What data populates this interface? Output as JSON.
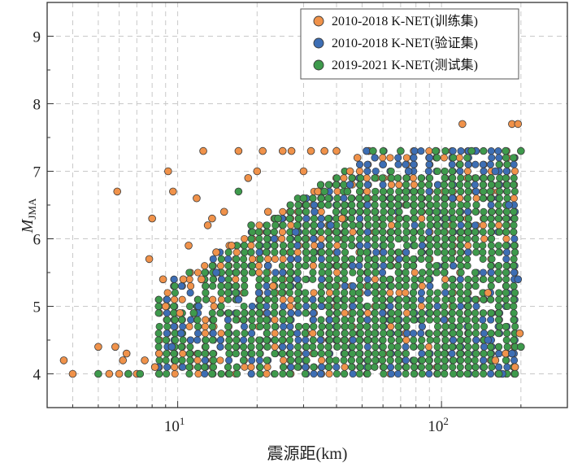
{
  "chart_data": {
    "type": "scatter",
    "xlabel": "震源距(km)",
    "ylabel_main": "M",
    "ylabel_sub": "JMA",
    "x_scale": "log",
    "xlim": [
      3.2,
      300
    ],
    "ylim": [
      3.5,
      9.5
    ],
    "x_major_ticks": [
      {
        "value": 10,
        "base": "10",
        "exp": "1"
      },
      {
        "value": 100,
        "base": "10",
        "exp": "2"
      }
    ],
    "y_ticks": [
      4,
      5,
      6,
      7,
      8,
      9
    ],
    "grid": true,
    "legend_position": "top-right",
    "series": [
      {
        "name": "2010-2018 K-NET(训练集)",
        "color": "#F0924A",
        "points": [
          [
            3.7,
            4.2
          ],
          [
            4.0,
            4.0
          ],
          [
            5.0,
            4.4
          ],
          [
            5.5,
            4.0
          ],
          [
            5.8,
            4.4
          ],
          [
            5.9,
            6.7
          ],
          [
            6.0,
            4.0
          ],
          [
            6.2,
            4.2
          ],
          [
            6.4,
            4.3
          ],
          [
            6.5,
            4.0
          ],
          [
            7.0,
            4.0
          ],
          [
            7.5,
            4.2
          ],
          [
            7.8,
            5.7
          ],
          [
            8.0,
            6.3
          ],
          [
            8.2,
            4.1
          ],
          [
            8.5,
            4.3
          ],
          [
            8.8,
            5.4
          ],
          [
            9.0,
            5.0
          ],
          [
            9.2,
            7.0
          ],
          [
            9.6,
            6.7
          ],
          [
            10.2,
            4.9
          ],
          [
            10.5,
            5.4
          ],
          [
            11.0,
            5.9
          ],
          [
            11.8,
            6.6
          ],
          [
            12.3,
            5.4
          ],
          [
            12.5,
            7.3
          ],
          [
            13.0,
            6.2
          ],
          [
            13.5,
            6.3
          ],
          [
            14.0,
            5.8
          ],
          [
            15.0,
            6.4
          ],
          [
            16.0,
            5.9
          ],
          [
            17.0,
            7.3
          ],
          [
            18.5,
            6.9
          ],
          [
            20.0,
            7.0
          ],
          [
            21.0,
            7.3
          ],
          [
            22.0,
            6.4
          ],
          [
            23.0,
            5.3
          ],
          [
            25.0,
            7.3
          ],
          [
            27.0,
            7.3
          ],
          [
            30.0,
            7.0
          ],
          [
            32.0,
            7.3
          ],
          [
            34.0,
            6.7
          ],
          [
            36.0,
            7.3
          ],
          [
            40.0,
            7.3
          ],
          [
            42.0,
            6.3
          ],
          [
            45.0,
            7.0
          ],
          [
            48.0,
            7.2
          ],
          [
            53.0,
            7.3
          ],
          [
            120.0,
            7.7
          ],
          [
            185.0,
            7.7
          ],
          [
            195.0,
            7.7
          ],
          [
            190.0,
            4.1
          ],
          [
            160.0,
            4.2
          ],
          [
            175.0,
            4.3
          ],
          [
            150.0,
            5.2
          ],
          [
            198.0,
            4.6
          ]
        ]
      },
      {
        "name": "2010-2018 K-NET(验证集)",
        "color": "#3D6EB4",
        "points": [
          [
            9.5,
            4.4
          ],
          [
            10.3,
            4.6
          ],
          [
            12.0,
            5.0
          ],
          [
            14.0,
            5.5
          ],
          [
            17.0,
            5.1
          ],
          [
            22.0,
            5.6
          ],
          [
            28.0,
            6.1
          ],
          [
            33.0,
            6.4
          ],
          [
            38.0,
            6.2
          ],
          [
            45.0,
            6.8
          ],
          [
            52.0,
            7.3
          ],
          [
            60.0,
            7.1
          ],
          [
            75.0,
            7.0
          ],
          [
            90.0,
            7.2
          ],
          [
            110.0,
            6.6
          ],
          [
            135.0,
            7.3
          ],
          [
            160.0,
            7.0
          ],
          [
            180.0,
            6.5
          ],
          [
            195.0,
            5.4
          ],
          [
            170.0,
            4.0
          ],
          [
            185.0,
            4.3
          ],
          [
            150.0,
            4.5
          ]
        ]
      },
      {
        "name": "2019-2021 K-NET(测试集)",
        "color": "#3E9A4C",
        "points": [
          [
            5.0,
            4.0
          ],
          [
            6.5,
            4.0
          ],
          [
            7.2,
            4.0
          ],
          [
            8.5,
            4.0
          ],
          [
            9.8,
            4.2
          ],
          [
            11.5,
            4.9
          ],
          [
            13.5,
            4.0
          ],
          [
            15.5,
            5.3
          ],
          [
            17.0,
            6.7
          ],
          [
            19.0,
            6.2
          ],
          [
            24.0,
            6.3
          ],
          [
            30.0,
            6.6
          ],
          [
            36.0,
            6.7
          ],
          [
            44.0,
            6.7
          ],
          [
            55.0,
            7.3
          ],
          [
            70.0,
            7.3
          ],
          [
            95.0,
            7.3
          ],
          [
            130.0,
            7.3
          ],
          [
            175.0,
            7.3
          ],
          [
            200.0,
            7.3
          ],
          [
            200.0,
            4.4
          ],
          [
            190.0,
            4.0
          ],
          [
            165.0,
            4.0
          ]
        ]
      }
    ],
    "dense_region_note": ""
  }
}
